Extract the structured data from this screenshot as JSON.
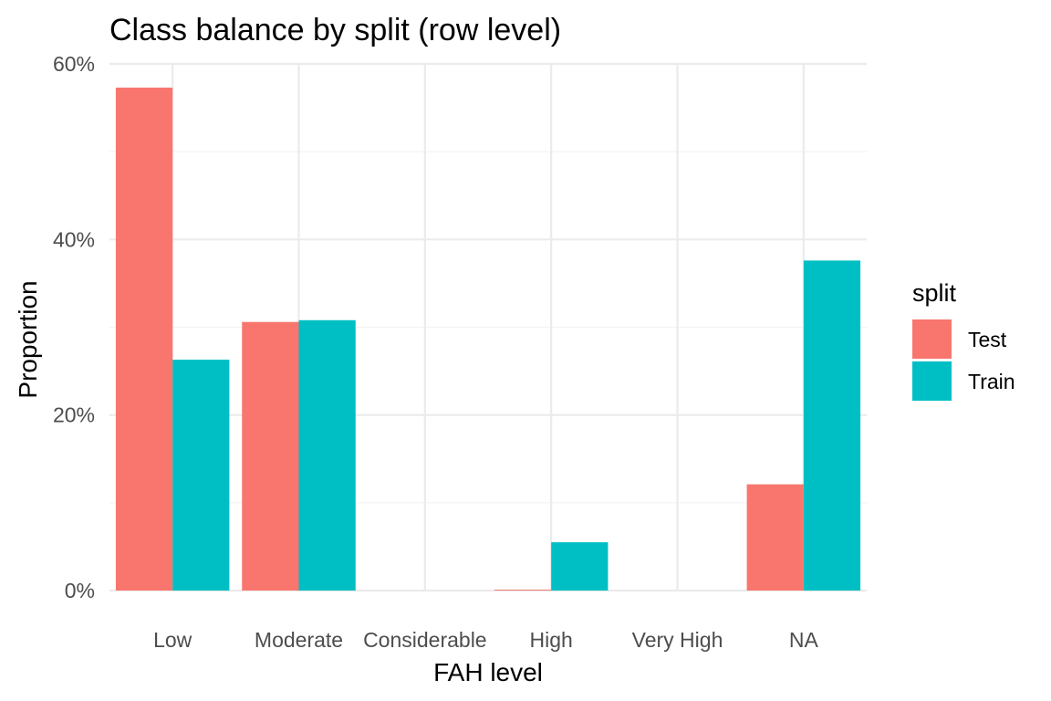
{
  "chart_data": {
    "type": "bar",
    "title": "Class balance by split (row level)",
    "xlabel": "FAH level",
    "ylabel": "Proportion",
    "categories": [
      "Low",
      "Moderate",
      "Considerable",
      "High",
      "Very High",
      "NA"
    ],
    "series": [
      {
        "name": "Test",
        "color": "#F8766D",
        "values": [
          0.573,
          0.306,
          0.0,
          0.001,
          0.0,
          0.121
        ]
      },
      {
        "name": "Train",
        "color": "#00BFC4",
        "values": [
          0.263,
          0.308,
          0.0,
          0.055,
          0.0,
          0.376
        ]
      }
    ],
    "ylim": [
      0,
      0.6
    ],
    "y_ticks": [
      0,
      0.2,
      0.4,
      0.6
    ],
    "y_tick_labels": [
      "0%",
      "20%",
      "40%",
      "60%"
    ],
    "grid": true,
    "legend": {
      "title": "split",
      "position": "right"
    }
  }
}
